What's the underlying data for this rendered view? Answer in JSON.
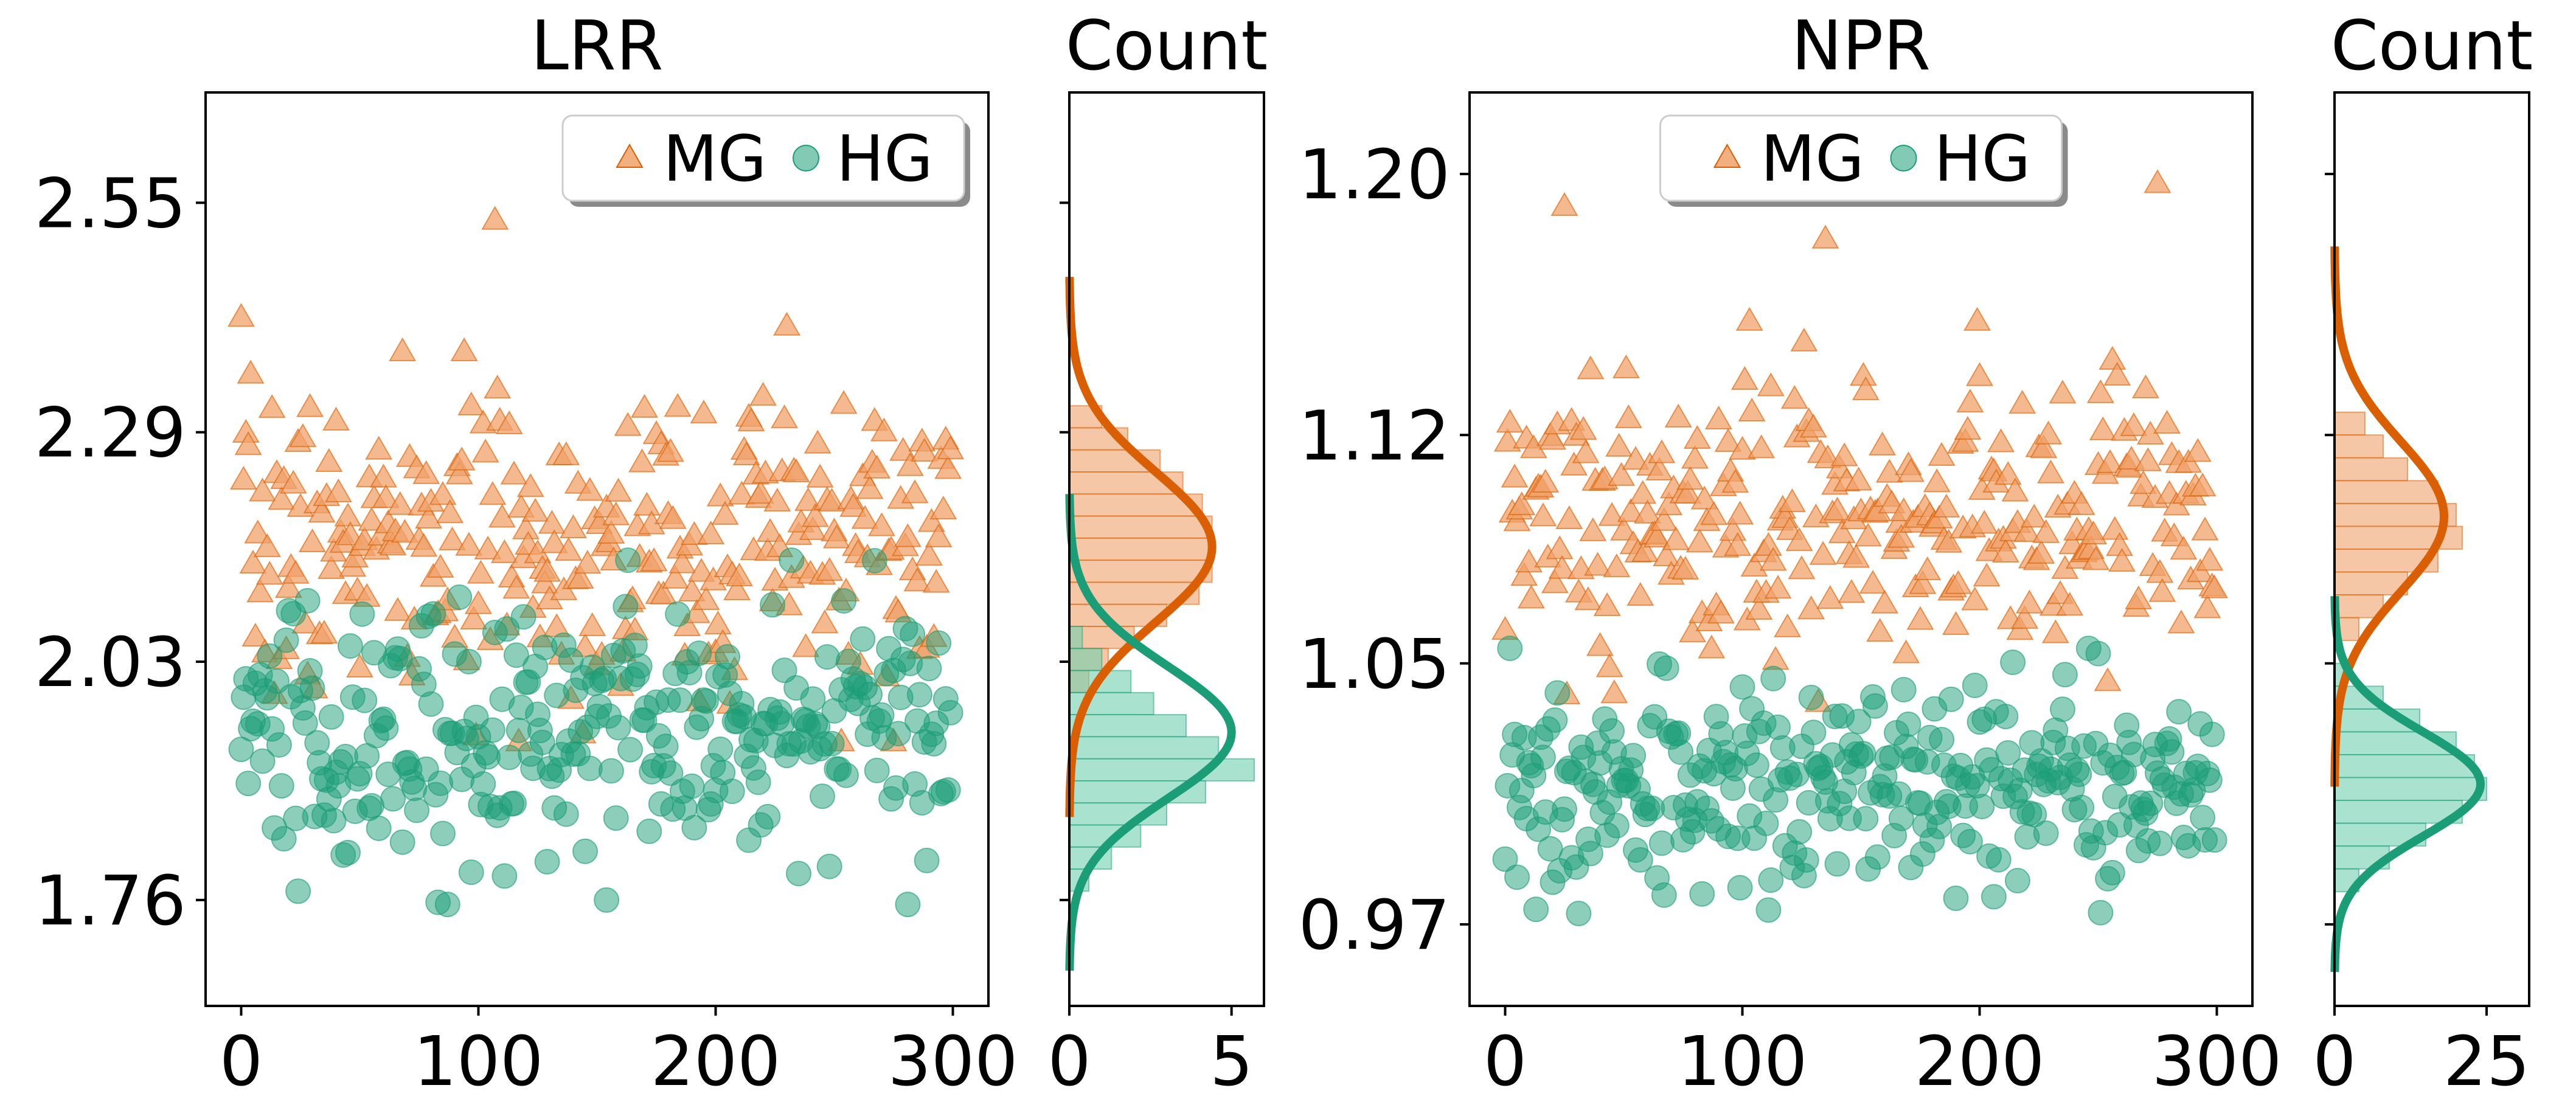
{
  "colors": {
    "MG": "#d95f02",
    "HG": "#1b9e77",
    "MG_fill": "#f0a26a",
    "HG_fill": "#6fd0b0"
  },
  "chart_data": [
    {
      "id": "lrr-scatter",
      "type": "scatter",
      "title": "LRR",
      "xlabel": "",
      "ylabel": "",
      "xlim": [
        -15,
        315
      ],
      "ylim": [
        1.64,
        2.675
      ],
      "xticks": [
        0,
        100,
        200,
        300
      ],
      "xtick_labels": [
        "0",
        "100",
        "200",
        "300"
      ],
      "yticks": [
        1.76,
        2.03,
        2.29,
        2.55
      ],
      "ytick_labels": [
        "1.76",
        "2.03",
        "2.29",
        "2.55"
      ],
      "legend": {
        "placement": "top-right",
        "entries": [
          "MG",
          "HG"
        ]
      },
      "series": [
        {
          "name": "MG",
          "marker": "triangle",
          "n": 300,
          "mean": 2.16,
          "sd": 0.085,
          "outliers": [
            [
              0,
              2.42
            ],
            [
              107,
              2.53
            ],
            [
              230,
              2.41
            ]
          ]
        },
        {
          "name": "HG",
          "marker": "circle",
          "n": 300,
          "mean": 1.95,
          "sd": 0.075,
          "outliers": [
            [
              154,
              1.76
            ],
            [
              24,
              1.77
            ],
            [
              235,
              1.79
            ]
          ]
        }
      ]
    },
    {
      "id": "lrr-hist",
      "type": "bar",
      "orientation": "horizontal",
      "title": "Count",
      "ylim": [
        1.64,
        2.675
      ],
      "xlim": [
        0,
        6
      ],
      "xticks": [
        0,
        5
      ],
      "xtick_labels": [
        "0",
        "5"
      ],
      "bin_width": 0.025,
      "series": [
        {
          "name": "MG",
          "bins": [
            [
              2.3075,
              1.0
            ],
            [
              2.2825,
              1.8
            ],
            [
              2.2575,
              2.8
            ],
            [
              2.2325,
              3.5
            ],
            [
              2.2075,
              4.1
            ],
            [
              2.1825,
              4.4
            ],
            [
              2.1575,
              4.4
            ],
            [
              2.1325,
              4.4
            ],
            [
              2.1075,
              4.0
            ],
            [
              2.0825,
              3.0
            ],
            [
              2.0575,
              2.0
            ],
            [
              2.0325,
              1.2
            ],
            [
              2.0075,
              0.6
            ]
          ],
          "kde": {
            "mean": 2.16,
            "sd": 0.085,
            "peak": 4.4
          }
        },
        {
          "name": "HG",
          "bins": [
            [
              2.0575,
              0.4
            ],
            [
              2.0325,
              1.0
            ],
            [
              2.0075,
              1.9
            ],
            [
              1.9825,
              2.6
            ],
            [
              1.9575,
              3.6
            ],
            [
              1.9325,
              4.6
            ],
            [
              1.9075,
              5.7
            ],
            [
              1.8825,
              4.2
            ],
            [
              1.8575,
              3.0
            ],
            [
              1.8325,
              2.2
            ],
            [
              1.8075,
              1.3
            ],
            [
              1.7825,
              0.6
            ]
          ],
          "kde": {
            "mean": 1.95,
            "sd": 0.075,
            "peak": 5.0
          }
        }
      ]
    },
    {
      "id": "npr-scatter",
      "type": "scatter",
      "title": "NPR",
      "xlabel": "",
      "ylabel": "",
      "xlim": [
        -15,
        315
      ],
      "ylim": [
        0.945,
        1.225
      ],
      "xticks": [
        0,
        100,
        200,
        300
      ],
      "xtick_labels": [
        "0",
        "100",
        "200",
        "300"
      ],
      "yticks": [
        0.97,
        1.05,
        1.12,
        1.2
      ],
      "ytick_labels": [
        "0.97",
        "1.05",
        "1.12",
        "1.20"
      ],
      "legend": {
        "placement": "top-center",
        "entries": [
          "MG",
          "HG"
        ]
      },
      "series": [
        {
          "name": "MG",
          "marker": "triangle",
          "n": 300,
          "mean": 1.095,
          "sd": 0.023,
          "outliers": [
            [
              25,
              1.19
            ],
            [
              275,
              1.197
            ],
            [
              135,
              1.18
            ]
          ]
        },
        {
          "name": "HG",
          "marker": "circle",
          "n": 300,
          "mean": 1.013,
          "sd": 0.016,
          "outliers": [
            [
              0,
              0.99
            ],
            [
              190,
              0.978
            ],
            [
              250,
              1.053
            ]
          ]
        }
      ]
    },
    {
      "id": "npr-hist",
      "type": "bar",
      "orientation": "horizontal",
      "title": "Count",
      "ylim": [
        0.945,
        1.225
      ],
      "xlim": [
        0,
        32
      ],
      "xticks": [
        0,
        25
      ],
      "xtick_labels": [
        "0",
        "25"
      ],
      "bin_width": 0.007,
      "series": [
        {
          "name": "MG",
          "bins": [
            [
              1.1235,
              5.0
            ],
            [
              1.1165,
              8.0
            ],
            [
              1.1095,
              12.0
            ],
            [
              1.1025,
              17.0
            ],
            [
              1.0955,
              20.0
            ],
            [
              1.0885,
              21.0
            ],
            [
              1.0815,
              17.0
            ],
            [
              1.0745,
              12.0
            ],
            [
              1.0675,
              8.0
            ],
            [
              1.0605,
              4.0
            ]
          ],
          "kde": {
            "mean": 1.095,
            "sd": 0.023,
            "peak": 18.0
          }
        },
        {
          "name": "HG",
          "bins": [
            [
              1.0465,
              2.0
            ],
            [
              1.0395,
              8.0
            ],
            [
              1.0325,
              14.0
            ],
            [
              1.0255,
              20.0
            ],
            [
              1.0185,
              23.0
            ],
            [
              1.0115,
              25.0
            ],
            [
              1.0045,
              21.0
            ],
            [
              0.9975,
              15.0
            ],
            [
              0.9905,
              9.0
            ],
            [
              0.9835,
              4.0
            ]
          ],
          "kde": {
            "mean": 1.013,
            "sd": 0.016,
            "peak": 24.0
          }
        }
      ]
    }
  ]
}
